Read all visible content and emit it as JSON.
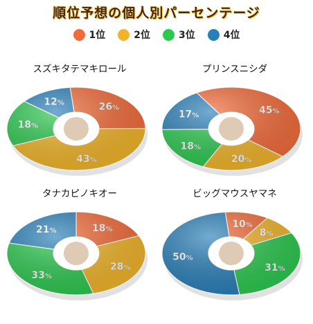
{
  "title": "順位予想の個人別パーセンテージ",
  "legend": {
    "items": [
      {
        "label": "1位",
        "color": "#f26b3a"
      },
      {
        "label": "2位",
        "color": "#f0b42a"
      },
      {
        "label": "3位",
        "color": "#2dc850"
      },
      {
        "label": "4位",
        "color": "#2a7fb8"
      }
    ]
  },
  "chart_data": [
    {
      "type": "pie",
      "title": "スズキタテマキロール",
      "categories": [
        "1位",
        "2位",
        "3位",
        "4位"
      ],
      "values": [
        26,
        43,
        18,
        12
      ],
      "labels": [
        "26",
        "43",
        "18",
        "12"
      ],
      "unit": "%"
    },
    {
      "type": "pie",
      "title": "プリンスニシダ",
      "categories": [
        "1位",
        "2位",
        "3位",
        "4位"
      ],
      "values": [
        45,
        20,
        18,
        17
      ],
      "labels": [
        "45",
        "20",
        "18",
        "17"
      ],
      "unit": "%"
    },
    {
      "type": "pie",
      "title": "タナカピノキオー",
      "categories": [
        "1位",
        "2位",
        "3位",
        "4位"
      ],
      "values": [
        18,
        28,
        33,
        21
      ],
      "labels": [
        "18",
        "28",
        "33",
        "21"
      ],
      "unit": "%"
    },
    {
      "type": "pie",
      "title": "ビッグマウスヤマネ",
      "categories": [
        "1位",
        "2位",
        "3位",
        "4位"
      ],
      "values": [
        10,
        8,
        31,
        50
      ],
      "labels": [
        "10",
        "8",
        "31",
        "50"
      ],
      "unit": "%"
    }
  ]
}
